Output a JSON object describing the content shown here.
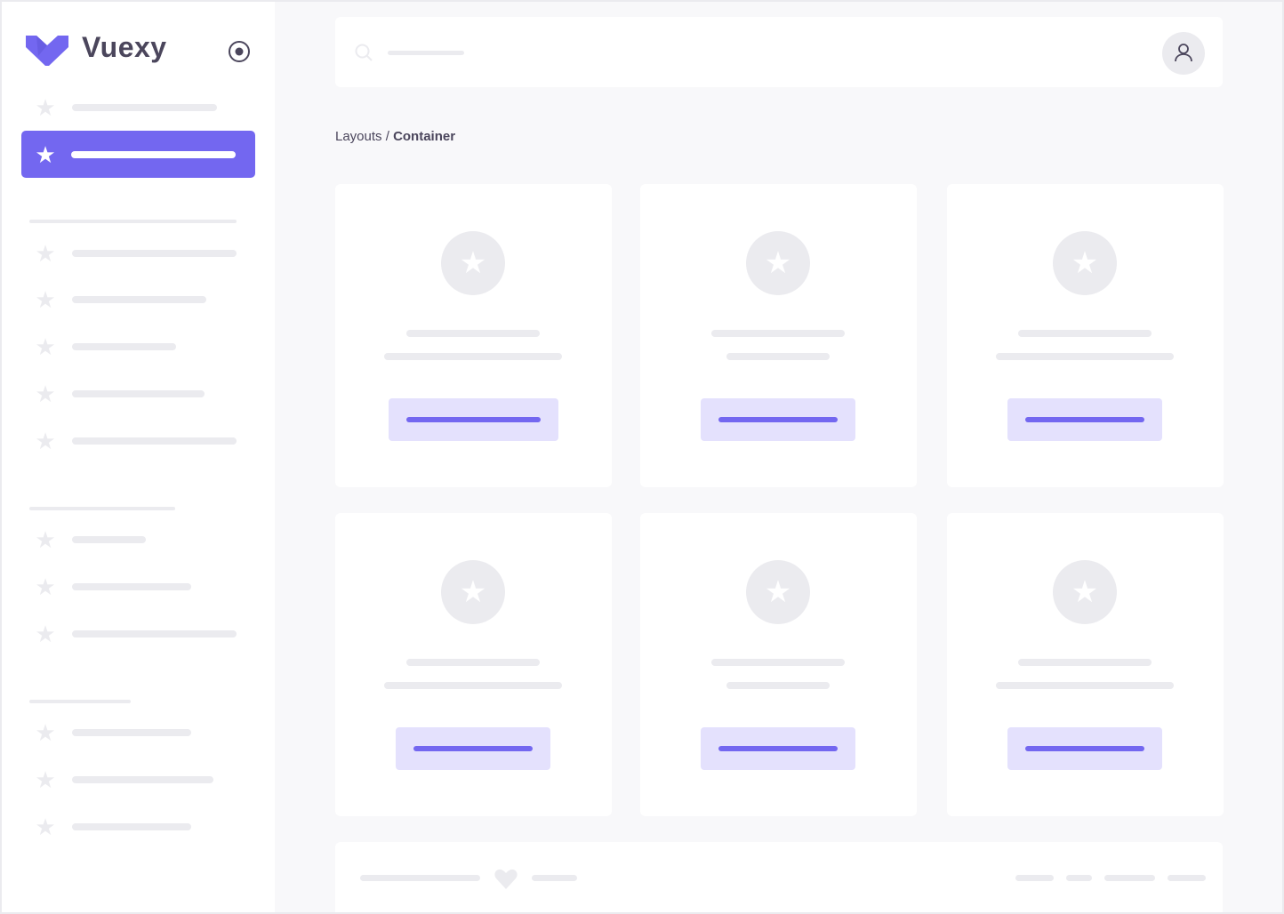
{
  "brand": {
    "name": "Vuexy",
    "logo_color": "#7367f0"
  },
  "sidebar": {
    "toggle_icon": "radio-circle-icon",
    "item_icon": "star-icon"
  },
  "header": {
    "search_icon": "search-icon",
    "avatar_icon": "user-icon"
  },
  "breadcrumb": {
    "parent": "Layouts",
    "separator": " / ",
    "current": "Container"
  },
  "cards": {
    "icon": "star-icon",
    "count": 6
  },
  "footer": {
    "icon": "heart-icon"
  },
  "colors": {
    "primary": "#7367f0",
    "primary_light": "#e4e1fd",
    "skeleton": "#ebebef",
    "background": "#f8f8fa",
    "text": "#4b465c"
  }
}
